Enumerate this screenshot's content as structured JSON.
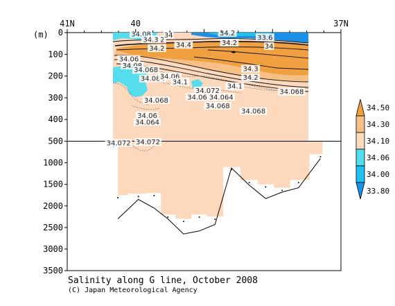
{
  "chart_data": {
    "type": "heatmap",
    "title": "Salinity along G line, October 2008",
    "credit": "(C) Japan Meteorological Agency",
    "ylabel": "(m)",
    "x_ticks": [
      {
        "value": 41,
        "label": "41N"
      },
      {
        "value": 40,
        "label": "40"
      },
      {
        "value": 37,
        "label": "37N"
      }
    ],
    "y_ticks_upper": [
      0,
      100,
      200,
      300,
      400,
      500
    ],
    "y_ticks_lower": [
      500,
      1000,
      1500,
      2000,
      2500,
      3000,
      3500
    ],
    "upper_ylim": [
      0,
      500
    ],
    "lower_ylim": [
      500,
      3500
    ],
    "xlim": [
      41,
      37
    ],
    "colorbar": {
      "levels": [
        "34.50",
        "34.30",
        "34.10",
        "34.06",
        "34.00",
        "33.80"
      ],
      "colors": [
        "#f0a040",
        "#f6bf86",
        "#fcd9bc",
        "#55ddee",
        "#22c0ee",
        "#1a90e8"
      ]
    },
    "contour_labels": [
      {
        "text": "34.08",
        "lat": 39.92,
        "depth": 5
      },
      {
        "text": "34.2",
        "lat": 39.69,
        "depth": 30
      },
      {
        "text": "34",
        "lat": 39.52,
        "depth": 10
      },
      {
        "text": "34.3",
        "lat": 39.78,
        "depth": 30
      },
      {
        "text": "34.2",
        "lat": 39.69,
        "depth": 70
      },
      {
        "text": "34.4",
        "lat": 39.3,
        "depth": 55
      },
      {
        "text": "34.2",
        "lat": 38.66,
        "depth": 0
      },
      {
        "text": "34.2",
        "lat": 38.63,
        "depth": 45
      },
      {
        "text": "33.6",
        "lat": 38.11,
        "depth": 20
      },
      {
        "text": "34",
        "lat": 38.05,
        "depth": 60
      },
      {
        "text": "34.06",
        "lat": 40.1,
        "depth": 120
      },
      {
        "text": "34.08",
        "lat": 40.05,
        "depth": 150
      },
      {
        "text": "34.068",
        "lat": 39.85,
        "depth": 170
      },
      {
        "text": "34.084",
        "lat": 39.75,
        "depth": 210
      },
      {
        "text": "34.06",
        "lat": 39.5,
        "depth": 200
      },
      {
        "text": "34.1",
        "lat": 39.35,
        "depth": 225
      },
      {
        "text": "34.072",
        "lat": 38.95,
        "depth": 265
      },
      {
        "text": "34.06",
        "lat": 39.1,
        "depth": 295
      },
      {
        "text": "34.064",
        "lat": 38.75,
        "depth": 295
      },
      {
        "text": "34.1",
        "lat": 38.55,
        "depth": 245
      },
      {
        "text": "34.3",
        "lat": 38.32,
        "depth": 165
      },
      {
        "text": "34.2",
        "lat": 38.32,
        "depth": 205
      },
      {
        "text": "34.068",
        "lat": 37.72,
        "depth": 270
      },
      {
        "text": "34.068",
        "lat": 39.7,
        "depth": 310
      },
      {
        "text": "34.068",
        "lat": 38.8,
        "depth": 335
      },
      {
        "text": "34.068",
        "lat": 38.28,
        "depth": 360
      },
      {
        "text": "34.06",
        "lat": 39.83,
        "depth": 380
      },
      {
        "text": "34.064",
        "lat": 39.83,
        "depth": 410
      },
      {
        "text": "34.072",
        "lat": 39.82,
        "depth": 510
      },
      {
        "text": "34.072",
        "lat": 40.25,
        "depth": 530
      }
    ],
    "stations": [
      {
        "lat": 40.26,
        "bottom_depth": 2300,
        "data_bottom": 1750
      },
      {
        "lat": 39.96,
        "bottom_depth": 1850,
        "data_bottom": 1720
      },
      {
        "lat": 39.73,
        "bottom_depth": 2050,
        "data_bottom": 1700
      },
      {
        "lat": 39.53,
        "bottom_depth": 2300,
        "data_bottom": 2200
      },
      {
        "lat": 39.3,
        "bottom_depth": 2650,
        "data_bottom": 2300
      },
      {
        "lat": 39.07,
        "bottom_depth": 2580,
        "data_bottom": 2200
      },
      {
        "lat": 38.84,
        "bottom_depth": 2430,
        "data_bottom": 2250
      },
      {
        "lat": 38.6,
        "bottom_depth": 1120,
        "data_bottom": 1100
      },
      {
        "lat": 38.34,
        "bottom_depth": 1520,
        "data_bottom": 1400
      },
      {
        "lat": 38.1,
        "bottom_depth": 1830,
        "data_bottom": 1500
      },
      {
        "lat": 37.86,
        "bottom_depth": 1680,
        "data_bottom": 1580
      },
      {
        "lat": 37.62,
        "bottom_depth": 1580,
        "data_bottom": 1400
      },
      {
        "lat": 37.3,
        "bottom_depth": 900,
        "data_bottom": 800
      }
    ]
  }
}
